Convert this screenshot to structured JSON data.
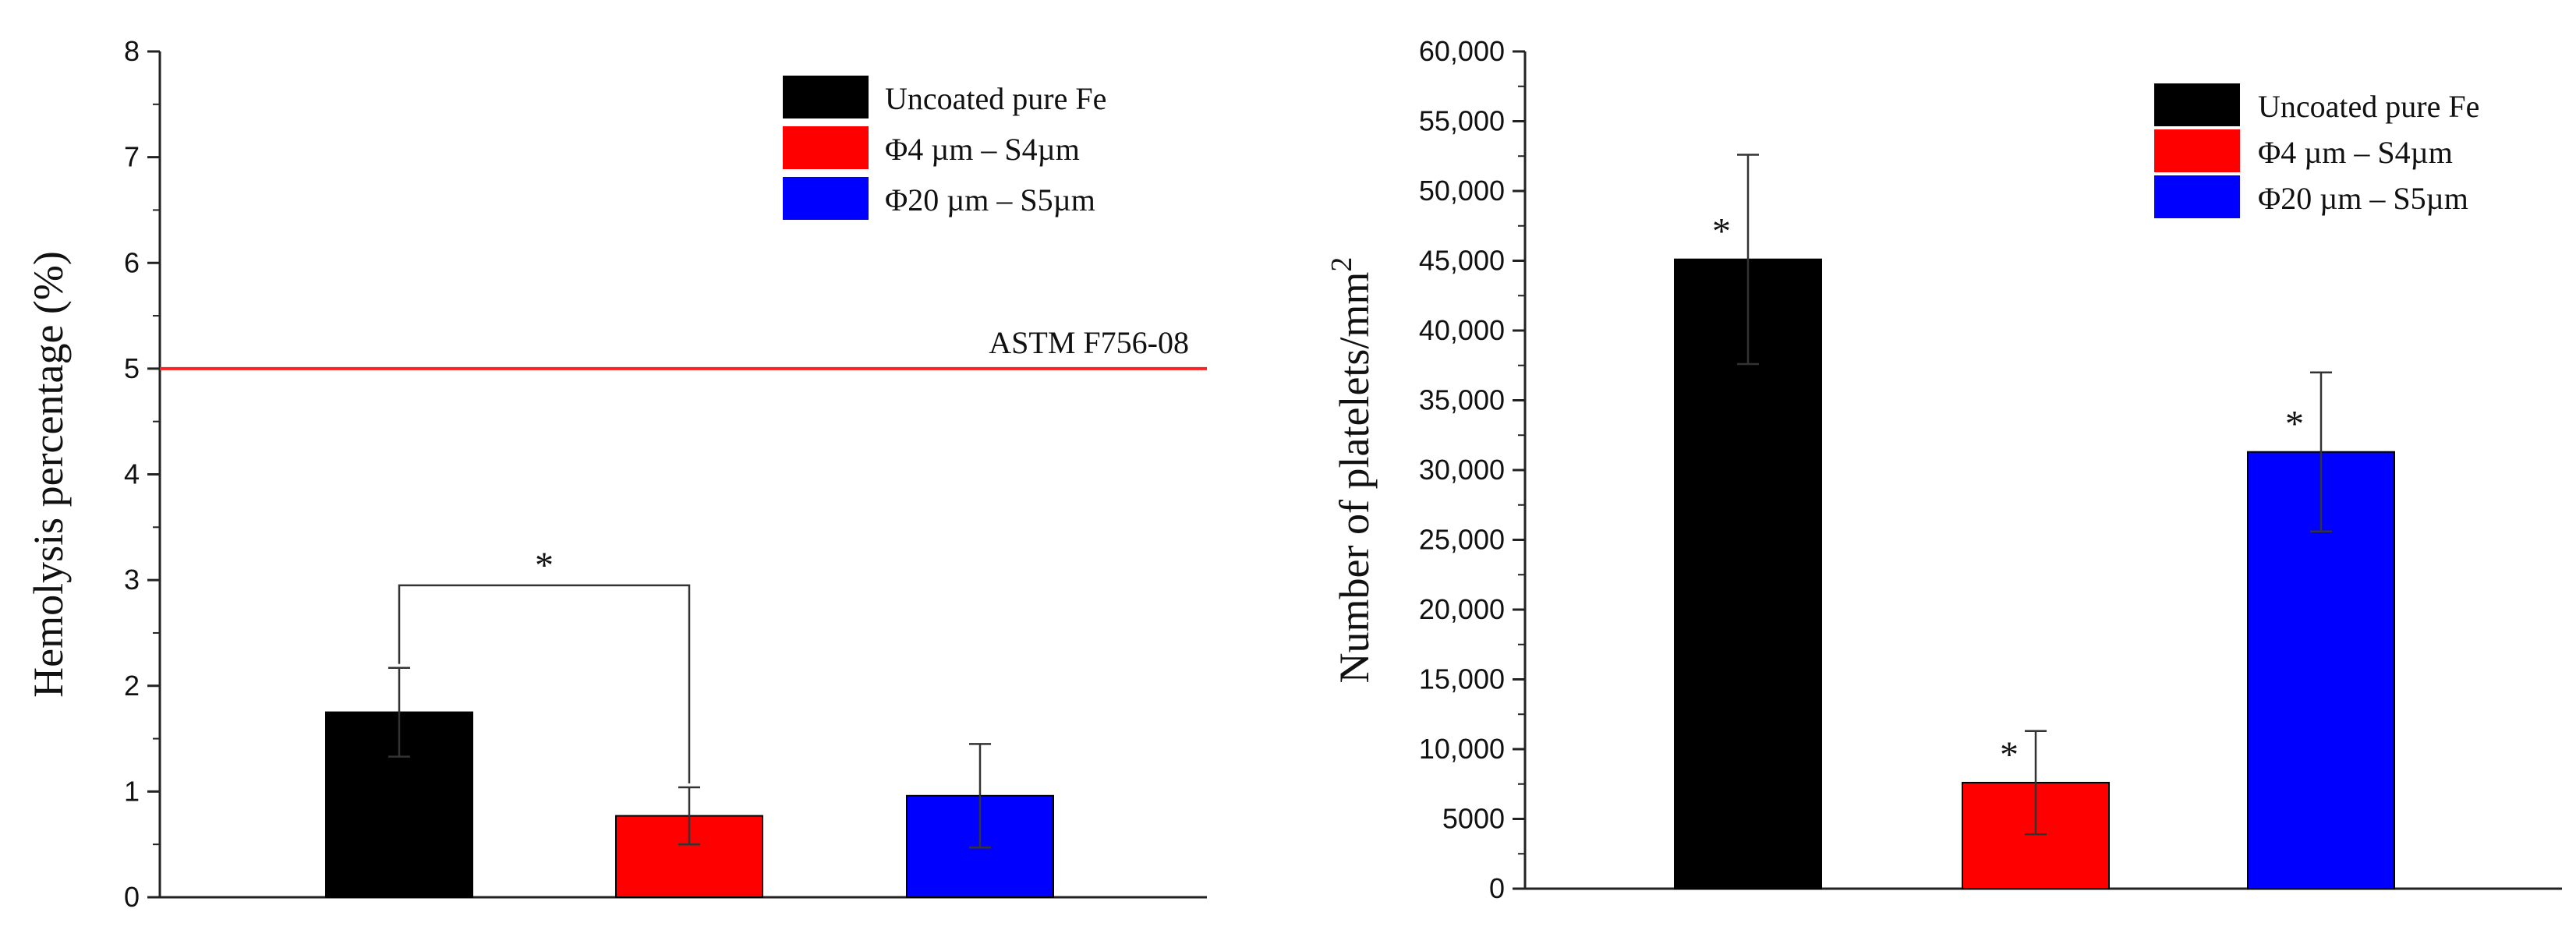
{
  "chart_data": [
    {
      "type": "bar",
      "categories": [
        "Uncoated pure Fe",
        "Φ4 µm – S4µm",
        "Φ20 µm – S5µm"
      ],
      "series": [
        {
          "name": "Hemolysis percentage",
          "values": [
            1.75,
            0.77,
            0.96
          ],
          "errors": [
            0.42,
            0.27,
            0.49
          ],
          "colors": [
            "#000000",
            "#ff0000",
            "#0000ff"
          ]
        }
      ],
      "ylabel": "Hemolysis percentage (%)",
      "xlabel": "",
      "ylim": [
        0,
        8
      ],
      "yticks": [
        0,
        1,
        2,
        3,
        4,
        5,
        6,
        7,
        8
      ],
      "ytick_labels": [
        "0",
        "1",
        "2",
        "3",
        "4",
        "5",
        "6",
        "7",
        "8"
      ],
      "reference_line": {
        "value": 5,
        "label": "ASTM F756-08",
        "color": "#ff2020"
      },
      "significance": {
        "between": [
          0,
          1
        ],
        "symbol": "*",
        "bracket_y": 2.95
      },
      "legend": {
        "position": "top-right",
        "entries": [
          {
            "label": "Uncoated pure Fe",
            "color": "#000000"
          },
          {
            "label": "Φ4 µm – S4µm",
            "color": "#ff0000"
          },
          {
            "label": "Φ20 µm – S5µm",
            "color": "#0000ff"
          }
        ]
      },
      "grid": false
    },
    {
      "type": "bar",
      "categories": [
        "Uncoated pure Fe",
        "Φ4 µm – S4µm",
        "Φ20 µm – S5µm"
      ],
      "series": [
        {
          "name": "Number of platelets",
          "values": [
            45100,
            7600,
            31300
          ],
          "errors": [
            7500,
            3700,
            5700
          ],
          "colors": [
            "#000000",
            "#ff0000",
            "#0000ff"
          ]
        }
      ],
      "ylabel": "Number of platelets/mm",
      "ylabel_superscript": "2",
      "xlabel": "",
      "ylim": [
        0,
        60000
      ],
      "yticks": [
        0,
        5000,
        10000,
        15000,
        20000,
        25000,
        30000,
        35000,
        40000,
        45000,
        50000,
        55000,
        60000
      ],
      "ytick_labels": [
        "0",
        "5000",
        "10,000",
        "15,000",
        "20,000",
        "25,000",
        "30,000",
        "35,000",
        "40,000",
        "45,000",
        "50,000",
        "55,000",
        "60,000"
      ],
      "bar_marks": [
        "*",
        "*",
        "*"
      ],
      "legend": {
        "position": "top-right",
        "entries": [
          {
            "label": "Uncoated pure Fe",
            "color": "#000000"
          },
          {
            "label": "Φ4 µm – S4µm",
            "color": "#ff0000"
          },
          {
            "label": "Φ20 µm – S5µm",
            "color": "#0000ff"
          }
        ]
      },
      "grid": false
    }
  ]
}
